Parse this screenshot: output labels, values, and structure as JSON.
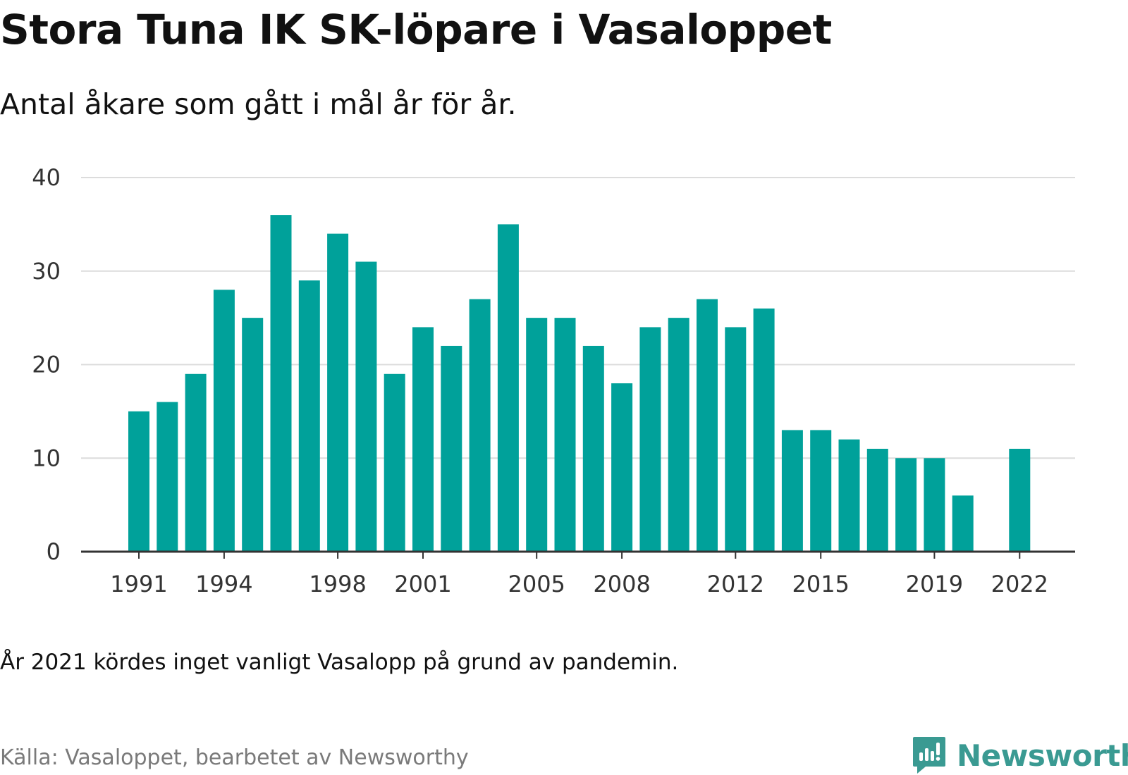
{
  "title": "Stora Tuna IK SK-löpare i Vasaloppet",
  "subtitle": "Antal åkare som gått i mål år för år.",
  "note": "År 2021 kördes inget vanligt Vasalopp på grund av pandemin.",
  "source": "Källa: Vasaloppet, bearbetet av Newsworthy",
  "brand": {
    "name": "Newsworthy",
    "color": "#3a9a92",
    "icon": "newsworthy-logo-icon"
  },
  "colors": {
    "bar": "#00a19a",
    "grid": "#dcdcdc",
    "axis": "#333333",
    "tick_label": "#333333"
  },
  "chart_data": {
    "type": "bar",
    "title": "Stora Tuna IK SK-löpare i Vasaloppet",
    "subtitle": "Antal åkare som gått i mål år för år.",
    "xlabel": "",
    "ylabel": "",
    "grid": true,
    "ylim": [
      0,
      40
    ],
    "yticks": [
      0,
      10,
      20,
      30,
      40
    ],
    "x": [
      1991,
      1992,
      1993,
      1994,
      1995,
      1996,
      1997,
      1998,
      1999,
      2000,
      2001,
      2002,
      2003,
      2004,
      2005,
      2006,
      2007,
      2008,
      2009,
      2010,
      2011,
      2012,
      2013,
      2014,
      2015,
      2016,
      2017,
      2018,
      2019,
      2020,
      2021,
      2022
    ],
    "values": [
      15,
      16,
      19,
      28,
      25,
      36,
      29,
      34,
      31,
      19,
      24,
      22,
      27,
      35,
      25,
      25,
      22,
      18,
      24,
      25,
      27,
      24,
      26,
      13,
      13,
      12,
      11,
      10,
      10,
      6,
      null,
      11
    ],
    "xticks": [
      1991,
      1994,
      1998,
      2001,
      2005,
      2008,
      2012,
      2015,
      2019,
      2022
    ]
  }
}
